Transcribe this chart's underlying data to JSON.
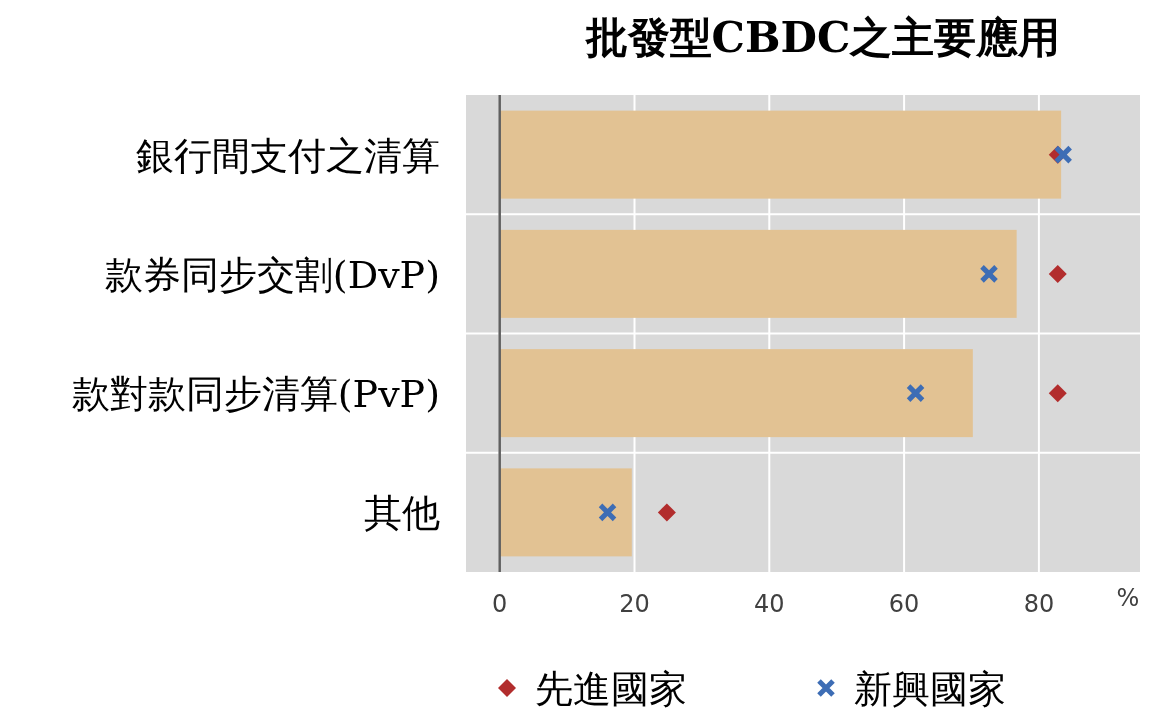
{
  "chart_data": {
    "type": "bar",
    "orientation": "horizontal",
    "title": "批發型CBDC之主要應用",
    "xlabel": "%",
    "categories": [
      "銀行間支付之清算",
      "款券同步交割(DvP)",
      "款對款同步清算(PvP)",
      "其他"
    ],
    "series": [
      {
        "color": "#e2c293",
        "values": [
          83.3,
          76.7,
          70.2,
          19.6
        ]
      },
      {
        "type": "scatter",
        "name": "先進國家",
        "color": "#b22d2d",
        "marker": "diamond",
        "values": [
          82.8,
          82.8,
          82.8,
          24.8
        ]
      },
      {
        "type": "scatter",
        "name": "新興國家",
        "color": "#3d6db5",
        "marker": "cross",
        "values": [
          83.6,
          72.6,
          61.7,
          16.0
        ]
      }
    ],
    "xlim": [
      -5,
      95
    ],
    "xticks": [
      0,
      20,
      40,
      60,
      80
    ],
    "grid": true,
    "legend": "bottom"
  }
}
